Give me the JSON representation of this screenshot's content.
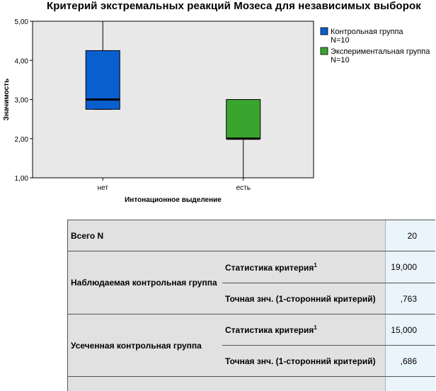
{
  "chart_data": {
    "type": "boxplot",
    "title": "Критерий экстремальных реакций Мозеса для независимых выборок",
    "xlabel": "Интонационное выделение",
    "ylabel": "Значимость",
    "ylim": [
      1.0,
      5.0
    ],
    "yticks": [
      "1,00",
      "2,00",
      "3,00",
      "4,00",
      "5,00"
    ],
    "categories": [
      "нет",
      "есть"
    ],
    "series": [
      {
        "name": "Контрольная группа",
        "n_label": "N=10",
        "color": "#0a5fcf",
        "min": 2.75,
        "q1": 2.75,
        "median": 3.0,
        "q3": 4.25,
        "max": 5.0
      },
      {
        "name": "Экспериментальная группа",
        "n_label": "N=10",
        "color": "#3aa52e",
        "min": 1.0,
        "q1": 2.0,
        "median": 2.0,
        "q3": 3.0,
        "max": 3.0
      }
    ],
    "legend_position": "right",
    "plot_background": "#e8e8e8"
  },
  "table": {
    "rows": [
      {
        "label": "Всего N",
        "value": "20"
      },
      {
        "group": "Наблюдаемая контрольная группа",
        "items": [
          {
            "label": "Статистика критерия",
            "sup": "1",
            "value": "19,000"
          },
          {
            "label": "Точная знч. (1-сторонний критерий)",
            "value": ",763"
          }
        ]
      },
      {
        "group": "Усеченная контрольная группа",
        "items": [
          {
            "label": "Статистика критерия",
            "sup": "1",
            "value": "15,000"
          },
          {
            "label": "Точная знч. (1-сторонний критерий)",
            "value": ",686"
          }
        ]
      }
    ]
  }
}
